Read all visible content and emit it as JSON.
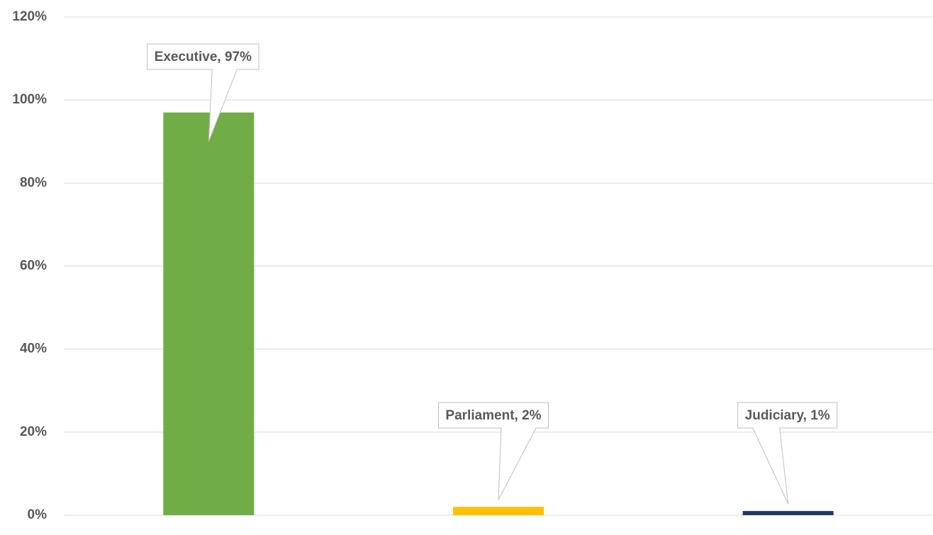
{
  "chart_data": {
    "type": "bar",
    "values": [
      97,
      2,
      1
    ],
    "value_labels": [
      "Executive, 97%",
      "Parliament, 2%",
      "Judiciary, 1%"
    ],
    "colors": [
      "#70ad47",
      "#ffc000",
      "#203864"
    ],
    "ylim": [
      0,
      120
    ],
    "yticks": [
      {
        "value": 0,
        "label": "0%"
      },
      {
        "value": 20,
        "label": "20%"
      },
      {
        "value": 40,
        "label": "40%"
      },
      {
        "value": 60,
        "label": "60%"
      },
      {
        "value": 80,
        "label": "80%"
      },
      {
        "value": 100,
        "label": "100%"
      },
      {
        "value": 120,
        "label": "120%"
      }
    ],
    "grid": true
  }
}
